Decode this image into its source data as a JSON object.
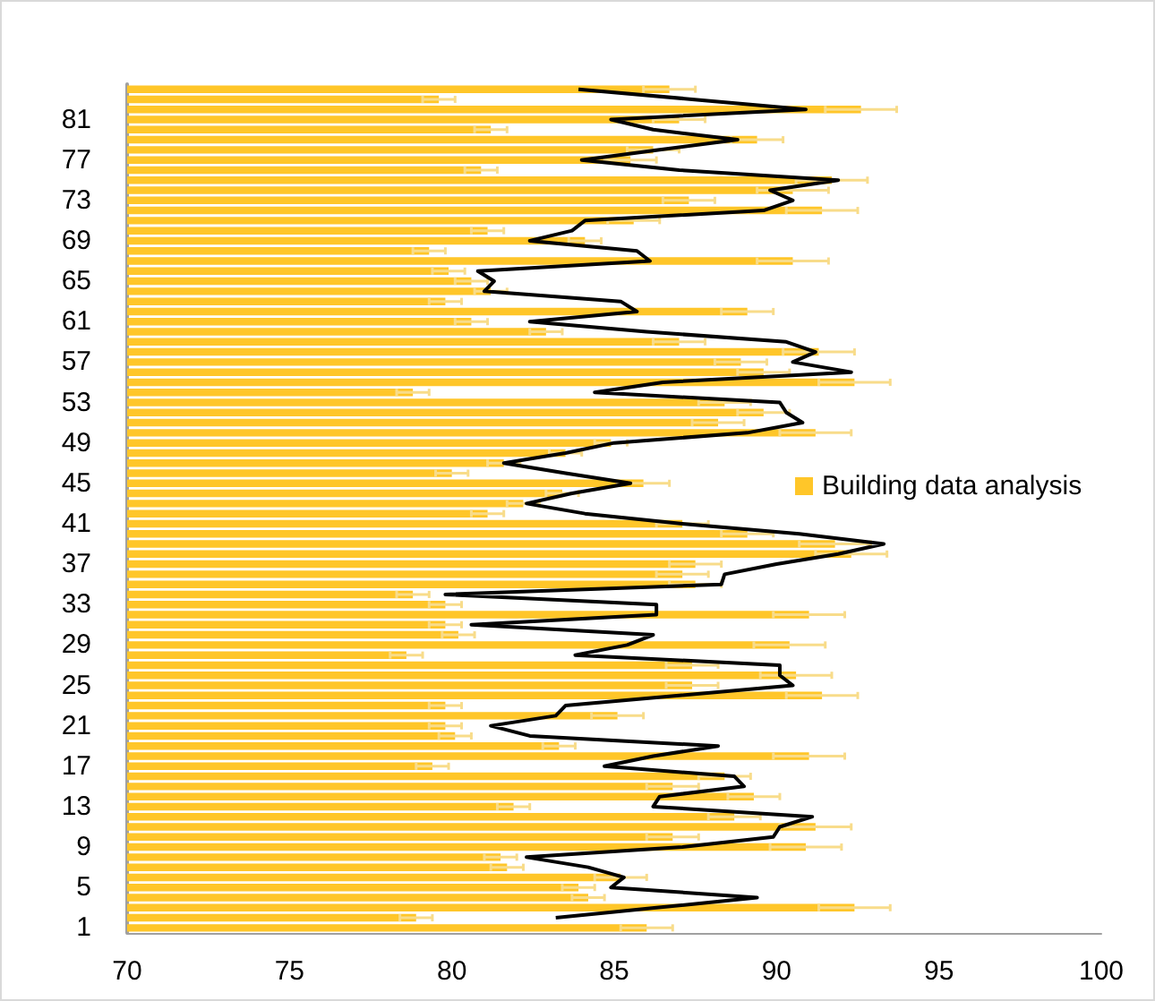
{
  "chart_data": {
    "type": "bar",
    "orientation": "horizontal",
    "categories": [
      null,
      null,
      null,
      "81",
      null,
      null,
      null,
      "77",
      null,
      null,
      null,
      "73",
      null,
      null,
      null,
      "69",
      null,
      null,
      null,
      "65",
      null,
      null,
      null,
      "61",
      null,
      null,
      null,
      "57",
      null,
      null,
      null,
      "53",
      null,
      null,
      null,
      "49",
      null,
      null,
      null,
      "45",
      null,
      null,
      null,
      "41",
      null,
      null,
      null,
      "37",
      null,
      null,
      null,
      "33",
      null,
      null,
      null,
      "29",
      null,
      null,
      null,
      "25",
      null,
      null,
      null,
      "21",
      null,
      null,
      null,
      "17",
      null,
      null,
      null,
      "13",
      null,
      null,
      null,
      "9",
      null,
      null,
      null,
      "5",
      null,
      null,
      null,
      "1"
    ],
    "series": [
      {
        "name": "Building data analysis",
        "color": "#ffc629",
        "values": [
          86.7,
          79.6,
          92.6,
          87.0,
          81.2,
          89.4,
          86.2,
          85.5,
          80.9,
          91.7,
          90.5,
          87.3,
          91.4,
          85.6,
          81.1,
          84.1,
          79.3,
          90.5,
          79.9,
          80.6,
          81.2,
          79.8,
          89.1,
          80.6,
          82.9,
          87.0,
          91.3,
          88.9,
          89.6,
          92.4,
          78.8,
          88.4,
          89.6,
          88.2,
          91.2,
          84.9,
          83.5,
          81.6,
          80.0,
          85.9,
          83.4,
          82.2,
          81.1,
          87.1,
          89.1,
          91.8,
          92.3,
          87.5,
          87.1,
          87.5,
          78.8,
          79.8,
          91.0,
          79.8,
          80.2,
          90.4,
          78.6,
          87.4,
          90.6,
          87.4,
          91.4,
          79.8,
          85.1,
          79.8,
          80.1,
          83.3,
          91.0,
          79.4,
          88.4,
          86.8,
          89.3,
          81.9,
          88.7,
          91.2,
          86.8,
          90.9,
          81.5,
          81.7,
          85.2,
          83.9,
          84.2,
          92.4,
          78.9,
          86.0
        ],
        "errors": [
          0.8,
          0.5,
          1.1,
          0.8,
          0.5,
          0.8,
          0.8,
          0.8,
          0.5,
          1.1,
          1.1,
          0.8,
          1.1,
          0.8,
          0.5,
          0.5,
          0.5,
          1.1,
          0.5,
          0.5,
          0.5,
          0.5,
          0.8,
          0.5,
          0.5,
          0.8,
          1.1,
          0.8,
          0.8,
          1.1,
          0.5,
          0.8,
          0.8,
          0.8,
          1.1,
          0.5,
          0.5,
          0.5,
          0.5,
          0.8,
          0.5,
          0.5,
          0.5,
          0.8,
          0.8,
          1.1,
          1.1,
          0.8,
          0.8,
          0.8,
          0.5,
          0.5,
          1.1,
          0.5,
          0.5,
          1.1,
          0.5,
          0.8,
          1.1,
          0.8,
          1.1,
          0.5,
          0.8,
          0.5,
          0.5,
          0.5,
          1.1,
          0.5,
          0.8,
          0.8,
          0.8,
          0.5,
          0.8,
          1.1,
          0.8,
          1.1,
          0.5,
          0.5,
          0.8,
          0.5,
          0.5,
          1.1,
          0.5,
          0.8
        ]
      },
      {
        "type": "line",
        "color": "#000000",
        "values": [
          83.9,
          87.4,
          90.9,
          84.9,
          86.2,
          88.8,
          86.4,
          84.0,
          87.0,
          91.9,
          89.8,
          90.5,
          89.6,
          84.1,
          83.7,
          82.4,
          85.7,
          86.1,
          80.8,
          81.3,
          81.0,
          85.2,
          85.7,
          82.4,
          86.0,
          90.3,
          91.2,
          90.5,
          92.3,
          86.5,
          84.4,
          90.1,
          90.3,
          90.8,
          89.1,
          85.0,
          83.5,
          81.6,
          83.5,
          85.5,
          83.7,
          82.3,
          84.1,
          87.1,
          90.7,
          93.3,
          91.9,
          90.0,
          88.4,
          88.3,
          79.8,
          86.3,
          86.3,
          80.6,
          86.2,
          85.4,
          83.8,
          90.1,
          90.1,
          90.5,
          87.0,
          83.5,
          83.2,
          81.2,
          82.4,
          88.2,
          86.2,
          84.7,
          88.7,
          89.0,
          86.4,
          86.2,
          91.1,
          90.1,
          89.9,
          87.1,
          82.3,
          84.2,
          85.3,
          84.9,
          89.4,
          86.3,
          83.2,
          null
        ]
      }
    ],
    "xlim": [
      70,
      100
    ],
    "xticks": [
      70,
      75,
      80,
      85,
      90,
      95,
      100
    ],
    "legend": "right",
    "grid": false
  }
}
